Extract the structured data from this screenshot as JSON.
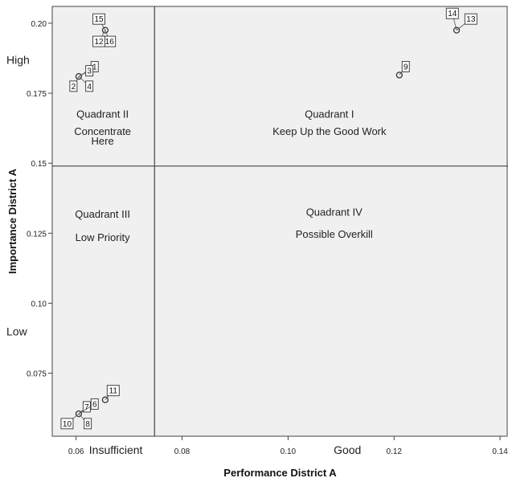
{
  "chart_data": {
    "type": "scatter",
    "title": "",
    "xlabel": "Performance District A",
    "ylabel": "Importance District A",
    "xlim": [
      0.0555,
      0.1415
    ],
    "ylim": [
      0.0525,
      0.206
    ],
    "x_ticks": [
      {
        "value": 0.06,
        "label": "0.06"
      },
      {
        "value": 0.08,
        "label": "0.08"
      },
      {
        "value": 0.1,
        "label": "0.10"
      },
      {
        "value": 0.12,
        "label": "0.12"
      },
      {
        "value": 0.14,
        "label": "0.14"
      }
    ],
    "y_ticks": [
      {
        "value": 0.075,
        "label": "0.075"
      },
      {
        "value": 0.1,
        "label": "0.10"
      },
      {
        "value": 0.125,
        "label": "0.125"
      },
      {
        "value": 0.15,
        "label": "0.15"
      },
      {
        "value": 0.175,
        "label": "0.175"
      },
      {
        "value": 0.2,
        "label": "0.20"
      }
    ],
    "reference_lines": {
      "x": 0.0748,
      "y": 0.149
    },
    "grid": false,
    "legend": "none",
    "side_labels": {
      "x_low": {
        "text": "Insufficient",
        "value": 0.0675
      },
      "x_high": {
        "text": "Good",
        "value": 0.1112
      },
      "y_high": {
        "text": "High",
        "value": 0.1855
      },
      "y_low": {
        "text": "Low",
        "value": 0.0885
      }
    },
    "quadrants": [
      {
        "lines": [
          "Quadrant II",
          "Concentrate",
          "Here"
        ],
        "x": 0.065,
        "y": [
          0.1662,
          0.1601,
          0.1566
        ]
      },
      {
        "lines": [
          "Quadrant I",
          "Keep Up the Good Work"
        ],
        "x": 0.1078,
        "y": [
          0.1662,
          0.1601
        ]
      },
      {
        "lines": [
          "Quadrant III",
          "Low Priority"
        ],
        "x": 0.065,
        "y": [
          0.1305,
          0.1222
        ]
      },
      {
        "lines": [
          "Quadrant IV",
          "Possible Overkill"
        ],
        "x": 0.1087,
        "y": [
          0.1313,
          0.1233
        ]
      }
    ],
    "points": [
      {
        "id": "15",
        "x": 0.0655,
        "y": 0.1975,
        "lx": 0.0643,
        "ly": 0.2015
      },
      {
        "id": "16",
        "x": 0.0655,
        "y": 0.1975,
        "lx": 0.0663,
        "ly": 0.1935
      },
      {
        "id": "12",
        "x": 0.0655,
        "y": 0.1975,
        "lx": 0.0643,
        "ly": 0.1935
      },
      {
        "id": "1",
        "x": 0.0605,
        "y": 0.181,
        "lx": 0.0635,
        "ly": 0.1845
      },
      {
        "id": "3",
        "x": 0.0605,
        "y": 0.181,
        "lx": 0.0625,
        "ly": 0.183
      },
      {
        "id": "2",
        "x": 0.0605,
        "y": 0.181,
        "lx": 0.0595,
        "ly": 0.1775
      },
      {
        "id": "4",
        "x": 0.0605,
        "y": 0.181,
        "lx": 0.0625,
        "ly": 0.1775
      },
      {
        "id": "14",
        "x": 0.1318,
        "y": 0.1975,
        "lx": 0.131,
        "ly": 0.2035
      },
      {
        "id": "13",
        "x": 0.1318,
        "y": 0.1975,
        "lx": 0.1345,
        "ly": 0.2015
      },
      {
        "id": "9",
        "x": 0.121,
        "y": 0.1815,
        "lx": 0.1222,
        "ly": 0.1845
      },
      {
        "id": "11",
        "x": 0.0655,
        "y": 0.0655,
        "lx": 0.067,
        "ly": 0.0688
      },
      {
        "id": "7",
        "x": 0.0605,
        "y": 0.0605,
        "lx": 0.062,
        "ly": 0.063
      },
      {
        "id": "6",
        "x": 0.0605,
        "y": 0.0605,
        "lx": 0.0635,
        "ly": 0.064
      },
      {
        "id": "10",
        "x": 0.0605,
        "y": 0.0605,
        "lx": 0.0583,
        "ly": 0.057
      },
      {
        "id": "8",
        "x": 0.0605,
        "y": 0.0605,
        "lx": 0.0622,
        "ly": 0.057
      }
    ]
  }
}
